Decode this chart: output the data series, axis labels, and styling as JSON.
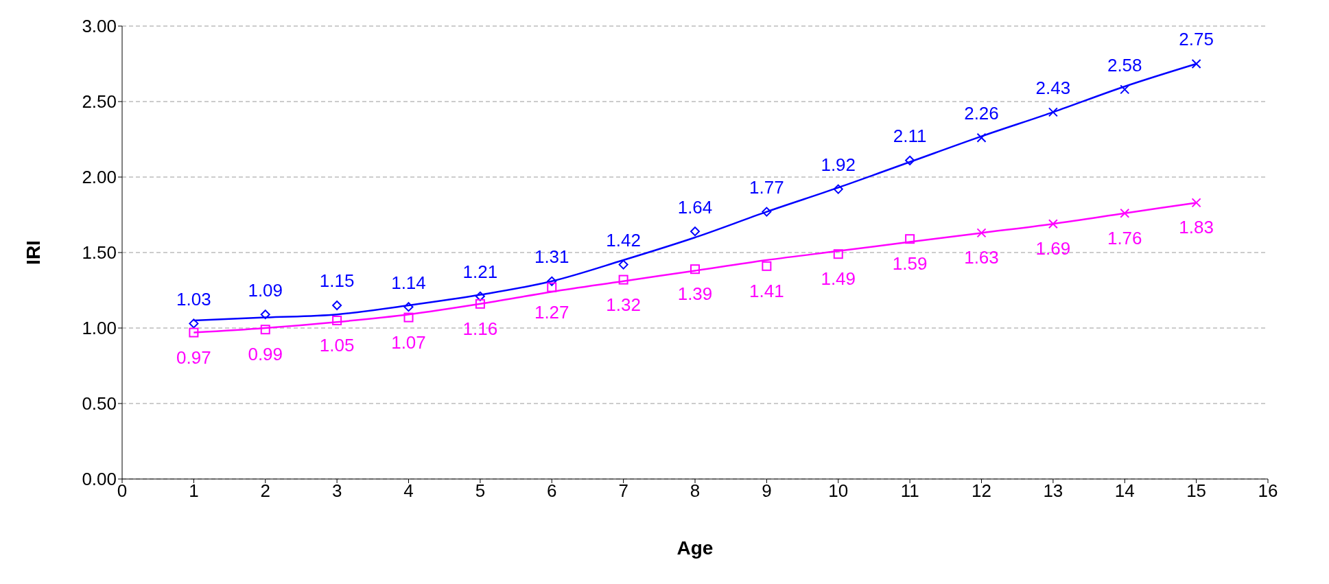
{
  "chart_data": {
    "type": "scatter",
    "xlabel": "Age",
    "ylabel": "IRI",
    "xlim": [
      0,
      16
    ],
    "xticks": [
      0,
      1,
      2,
      3,
      4,
      5,
      6,
      7,
      8,
      9,
      10,
      11,
      12,
      13,
      14,
      15,
      16
    ],
    "ylim": [
      0,
      3
    ],
    "yticks": [
      {
        "value": 0,
        "label": "0.00"
      },
      {
        "value": 0.5,
        "label": "0.50"
      },
      {
        "value": 1,
        "label": "1.00"
      },
      {
        "value": 1.5,
        "label": "1.50"
      },
      {
        "value": 2,
        "label": "2.00"
      },
      {
        "value": 2.5,
        "label": "2.50"
      },
      {
        "value": 3,
        "label": "3.00"
      }
    ],
    "grid": "y",
    "legend": false,
    "series": [
      {
        "type": "line",
        "color": "#0000ff",
        "marker": "none",
        "line_style": "solid",
        "x": [
          1,
          2,
          3,
          4,
          5,
          6,
          7,
          8,
          9,
          10,
          11,
          12,
          13,
          14,
          15
        ],
        "values": [
          1.05,
          1.07,
          1.09,
          1.15,
          1.22,
          1.31,
          1.45,
          1.6,
          1.77,
          1.93,
          2.1,
          2.27,
          2.43,
          2.6,
          2.75
        ]
      },
      {
        "type": "line",
        "color": "#ff00ff",
        "marker": "none",
        "line_style": "solid",
        "x": [
          1,
          2,
          3,
          4,
          5,
          6,
          7,
          8,
          9,
          10,
          11,
          12,
          13,
          14,
          15
        ],
        "values": [
          0.97,
          1.0,
          1.04,
          1.09,
          1.16,
          1.24,
          1.31,
          1.38,
          1.45,
          1.51,
          1.57,
          1.63,
          1.69,
          1.76,
          1.83
        ]
      },
      {
        "color": "#0000ff",
        "marker": "diamond",
        "x": [
          1,
          2,
          3,
          4,
          5,
          6,
          7,
          8,
          9,
          10,
          11
        ],
        "values": [
          1.03,
          1.09,
          1.15,
          1.14,
          1.21,
          1.31,
          1.42,
          1.64,
          1.77,
          1.92,
          2.11
        ],
        "value_labels": [
          "1.03",
          "1.09",
          "1.15",
          "1.14",
          "1.21",
          "1.31",
          "1.42",
          "1.64",
          "1.77",
          "1.92",
          "2.11"
        ]
      },
      {
        "color": "#0000ff",
        "marker": "cross",
        "x": [
          12,
          13,
          14,
          15
        ],
        "values": [
          2.26,
          2.43,
          2.58,
          2.75
        ],
        "value_labels": [
          "2.26",
          "2.43",
          "2.58",
          "2.75"
        ]
      },
      {
        "color": "#ff00ff",
        "marker": "square",
        "x": [
          1,
          2,
          3,
          4,
          5,
          6,
          7,
          8,
          9,
          10,
          11
        ],
        "values": [
          0.97,
          0.99,
          1.05,
          1.07,
          1.16,
          1.27,
          1.32,
          1.39,
          1.41,
          1.49,
          1.59
        ],
        "value_labels": [
          "0.97",
          "0.99",
          "1.05",
          "1.07",
          "1.16",
          "1.27",
          "1.32",
          "1.39",
          "1.41",
          "1.49",
          "1.59"
        ]
      },
      {
        "color": "#ff00ff",
        "marker": "cross",
        "x": [
          12,
          13,
          14,
          15
        ],
        "values": [
          1.63,
          1.69,
          1.76,
          1.83
        ],
        "value_labels": [
          "1.63",
          "1.69",
          "1.76",
          "1.83"
        ]
      }
    ]
  }
}
